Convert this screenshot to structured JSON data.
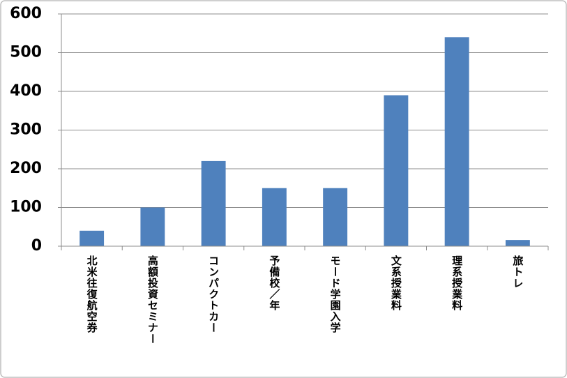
{
  "chart_data": {
    "type": "bar",
    "categories": [
      "北米往復航空券",
      "高額投資セミナー",
      "コンパクトカー",
      "予備校／年",
      "モード学園入学",
      "文系授業料",
      "理系授業料",
      "旅トレ"
    ],
    "values": [
      40,
      100,
      220,
      150,
      150,
      390,
      540,
      16
    ],
    "color": "#4f81bd",
    "ylim": [
      0,
      600
    ],
    "yticks": [
      0,
      100,
      200,
      300,
      400,
      500,
      600
    ],
    "grid": true
  }
}
